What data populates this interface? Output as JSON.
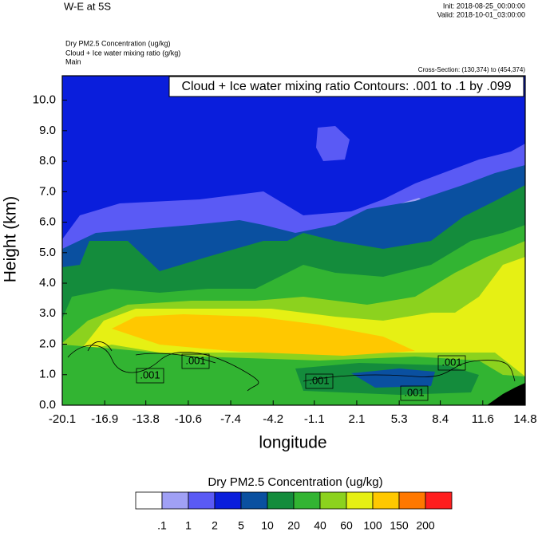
{
  "chart_data": {
    "type": "contour",
    "title": "W-E at 5S",
    "init": "Init: 2018-08-25_00:00:00",
    "valid": "Valid: 2018-10-01_03:00:00",
    "fields": [
      "Dry PM2.5 Concentration   (ug/kg)",
      "Cloud + Ice water mixing ratio   (g/kg)",
      "Main"
    ],
    "cross_section": "Cross-Section: (130,374) to (454,374)",
    "annotation": "Cloud + Ice water mixing ratio Contours: .001 to .1 by .099",
    "x_label": "longitude",
    "y_label": "Height (km)",
    "xlim": [
      -20.1,
      14.8
    ],
    "xticks": [
      -20.1,
      -16.9,
      -13.8,
      -10.6,
      -7.4,
      -4.2,
      -1.1,
      2.1,
      5.3,
      8.4,
      11.6,
      14.8
    ],
    "ylim": [
      0,
      10.8
    ],
    "yticks": [
      {
        "value": 0,
        "label": "0.0"
      },
      {
        "value": 1,
        "label": "1.0"
      },
      {
        "value": 2,
        "label": "2.0"
      },
      {
        "value": 3,
        "label": "3.0"
      },
      {
        "value": 4,
        "label": "4.0"
      },
      {
        "value": 5,
        "label": "5.0"
      },
      {
        "value": 6,
        "label": "6.0"
      },
      {
        "value": 7,
        "label": "7.0"
      },
      {
        "value": 8,
        "label": "8.0"
      },
      {
        "value": 9,
        "label": "9.0"
      },
      {
        "value": 10,
        "label": "10.0"
      }
    ],
    "contour_labels": [
      ".001",
      ".001",
      ".001",
      ".001",
      ".001"
    ],
    "colorbar": {
      "title": "Dry PM2.5 Concentration  (ug/kg)",
      "levels": [
        {
          "value": 0.1,
          "label": ".1"
        },
        1,
        2,
        5,
        10,
        20,
        40,
        60,
        100,
        150,
        200
      ],
      "colors": [
        "#ffffff",
        "#a0a0f5",
        "#5a5af5",
        "#0a1edc",
        "#0a50a0",
        "#148c3c",
        "#32b432",
        "#8cd21e",
        "#e6f014",
        "#ffc800",
        "#ff7800",
        "#ff1e1e"
      ]
    }
  }
}
